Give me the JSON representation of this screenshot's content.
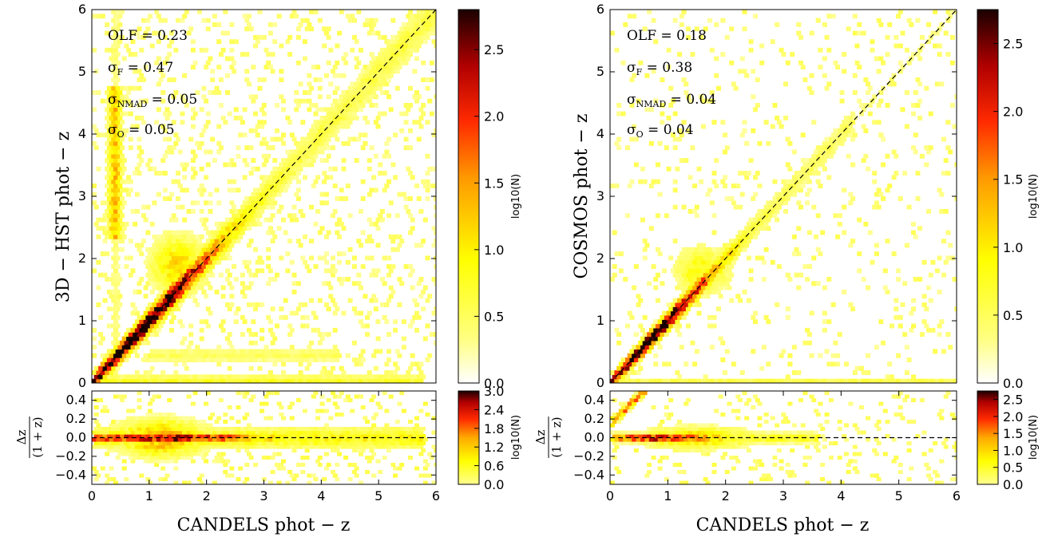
{
  "chart_data": [
    {
      "type": "heatmap",
      "panel": "left-main",
      "xlabel": "CANDELS phot − z",
      "ylabel": "3D − HST phot − z",
      "xlim": [
        0,
        6
      ],
      "ylim": [
        0,
        6
      ],
      "xticks": [
        "0",
        "1",
        "2",
        "3",
        "4",
        "5",
        "6"
      ],
      "yticks": [
        "0",
        "1",
        "2",
        "3",
        "4",
        "5",
        "6"
      ],
      "annotations": [
        "OLF = 0.23",
        "σF = 0.47",
        "σNMAD = 0.05",
        "σO = 0.05"
      ],
      "reference_line": "y = x (dashed)",
      "colorbar": {
        "label": "log10(N)",
        "range": [
          0,
          2.8
        ],
        "ticks": [
          "0.0",
          "0.5",
          "1.0",
          "1.5",
          "2.0",
          "2.5"
        ]
      },
      "structures": [
        {
          "name": "one-to-one locus",
          "x_range": [
            0,
            6
          ],
          "peak_at_x": 0.8,
          "peak_log10N": 2.8
        },
        {
          "name": "catastrophic outlier plume",
          "x": 0.4,
          "y_range": [
            2.5,
            4.5
          ],
          "log10N": 1.3
        },
        {
          "name": "low-z failure strip",
          "y": 0.05,
          "x_range": [
            0,
            6
          ],
          "log10N": 0.8
        }
      ]
    },
    {
      "type": "heatmap",
      "panel": "left-residual",
      "xlabel": "CANDELS phot − z",
      "ylabel": "Δz/(1+z)",
      "xlim": [
        0,
        6
      ],
      "ylim": [
        -0.5,
        0.5
      ],
      "xticks": [
        "0",
        "1",
        "2",
        "3",
        "4",
        "5",
        "6"
      ],
      "yticks": [
        "0.4",
        "0.2",
        "0.0",
        "−0.2",
        "−0.4"
      ],
      "colorbar": {
        "label": "log10(N)",
        "range": [
          0,
          3.0
        ],
        "ticks": [
          "0.0",
          "0.6",
          "1.2",
          "1.8",
          "2.4",
          "3.0"
        ]
      }
    },
    {
      "type": "heatmap",
      "panel": "right-main",
      "xlabel": "CANDELS phot − z",
      "ylabel": "COSMOS phot − z",
      "xlim": [
        0,
        6
      ],
      "ylim": [
        0,
        6
      ],
      "xticks": [
        "0",
        "1",
        "2",
        "3",
        "4",
        "5",
        "6"
      ],
      "yticks": [
        "0",
        "1",
        "2",
        "3",
        "4",
        "5",
        "6"
      ],
      "annotations": [
        "OLF = 0.18",
        "σF = 0.38",
        "σNMAD = 0.04",
        "σO = 0.04"
      ],
      "reference_line": "y = x (dashed)",
      "colorbar": {
        "label": "log10(N)",
        "range": [
          0,
          2.75
        ],
        "ticks": [
          "0.0",
          "0.5",
          "1.0",
          "1.5",
          "2.0",
          "2.5"
        ]
      },
      "structures": [
        {
          "name": "one-to-one locus",
          "x_range": [
            0,
            4
          ],
          "peak_at_x": 0.7,
          "peak_log10N": 2.7
        },
        {
          "name": "low-z failure strip",
          "y": 0.05,
          "x_range": [
            0,
            6
          ],
          "log10N": 0.6
        }
      ]
    },
    {
      "type": "heatmap",
      "panel": "right-residual",
      "xlabel": "CANDELS phot − z",
      "ylabel": "Δz/(1+z)",
      "xlim": [
        0,
        6
      ],
      "ylim": [
        -0.5,
        0.5
      ],
      "xticks": [
        "0",
        "1",
        "2",
        "3",
        "4",
        "5",
        "6"
      ],
      "yticks": [
        "0.4",
        "0.2",
        "0.0",
        "−0.2",
        "−0.4"
      ],
      "colorbar": {
        "label": "log10(N)",
        "range": [
          0,
          2.75
        ],
        "ticks": [
          "0.0",
          "0.5",
          "1.0",
          "1.5",
          "2.0",
          "2.5"
        ]
      }
    }
  ],
  "labels": {
    "left_ylabel": "3D − HST phot − z",
    "right_ylabel": "COSMOS phot − z",
    "xlabel": "CANDELS phot − z",
    "resid_num": "Δz",
    "resid_den": "(1 + z)",
    "cbar_label": "log10(N)",
    "left_stats": {
      "olf": "OLF = 0.23",
      "sf_pre": "σ",
      "sf_sub": "F",
      "sf_val": " = 0.47",
      "sn_pre": "σ",
      "sn_sub": "NMAD",
      "sn_val": " = 0.05",
      "so_pre": "σ",
      "so_sub": "O",
      "so_val": " = 0.05"
    },
    "right_stats": {
      "olf": "OLF = 0.18",
      "sf_pre": "σ",
      "sf_sub": "F",
      "sf_val": " = 0.38",
      "sn_pre": "σ",
      "sn_sub": "NMAD",
      "sn_val": " = 0.04",
      "so_pre": "σ",
      "so_sub": "O",
      "so_val": " = 0.04"
    }
  },
  "colors": {
    "cmap": "hot_r",
    "dashed_line": "#000000",
    "axes": "#000000"
  }
}
